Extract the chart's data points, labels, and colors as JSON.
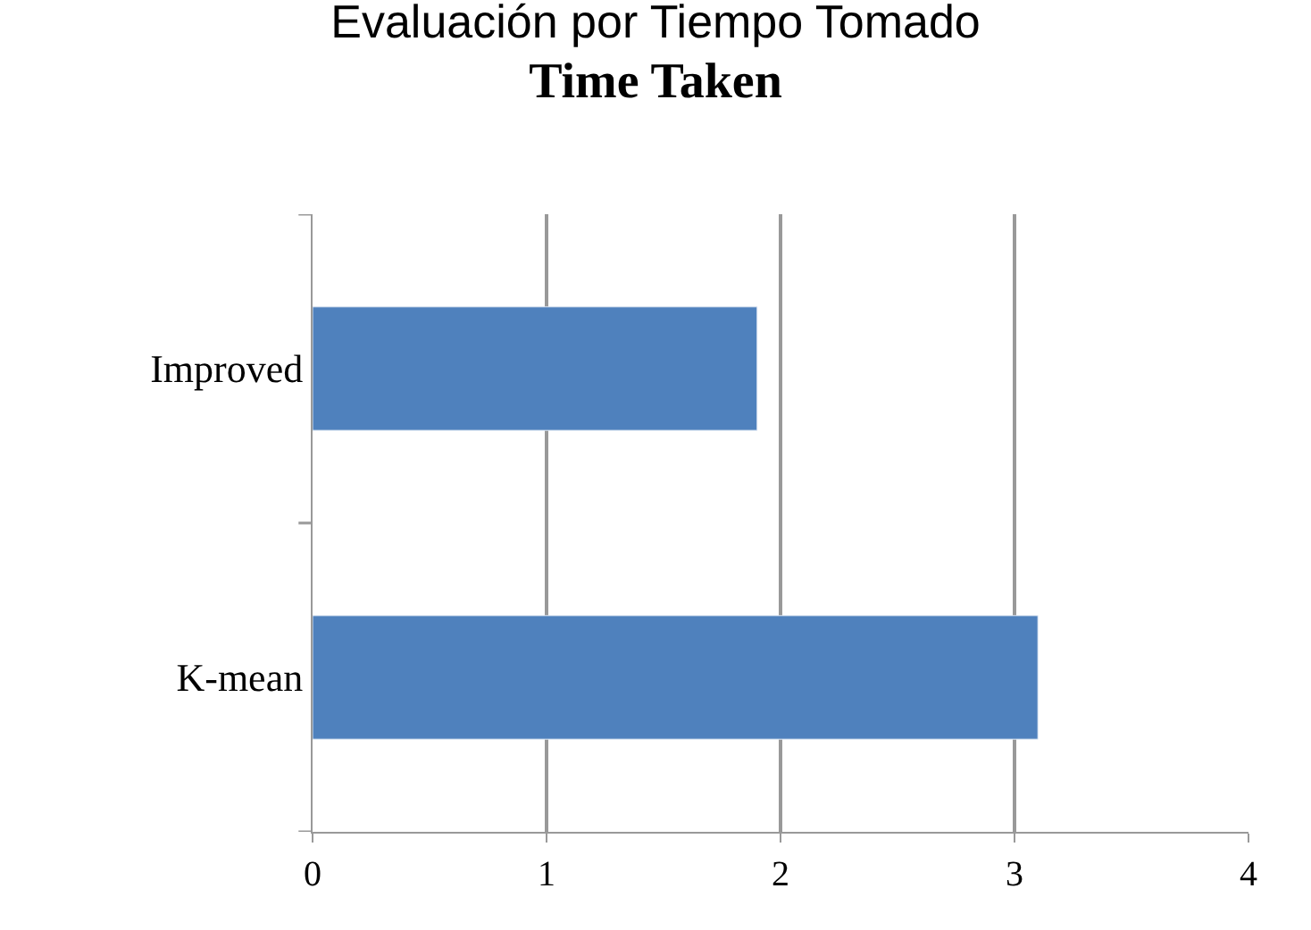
{
  "chart_data": {
    "type": "bar",
    "orientation": "horizontal",
    "title": "Evaluación por Tiempo Tomado",
    "subtitle": "Time Taken",
    "categories": [
      "Improved",
      "K-mean"
    ],
    "values": [
      1.9,
      3.1
    ],
    "color": "#4f81bd",
    "xlim": [
      0,
      4
    ],
    "xticks": [
      0,
      1,
      2,
      3,
      4
    ],
    "grid": "x",
    "legend": false
  }
}
